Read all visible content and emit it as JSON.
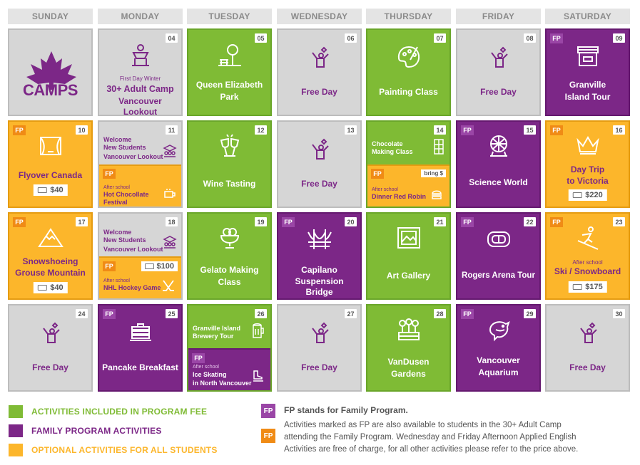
{
  "days": [
    "SUNDAY",
    "MONDAY",
    "TUESDAY",
    "WEDNESDAY",
    "THURSDAY",
    "FRIDAY",
    "SATURDAY"
  ],
  "logo": {
    "text": "CAMPS"
  },
  "fp_label": "FP",
  "free_day": "Free Day",
  "cells": {
    "d04": {
      "num": "04",
      "small": "First Day Winter",
      "line1": "30+ Adult Camp",
      "line2": "Vancouver Lookout"
    },
    "d05": {
      "num": "05",
      "line1": "Queen Elizabeth",
      "line2": "Park"
    },
    "d06": {
      "num": "06"
    },
    "d07": {
      "num": "07",
      "line1": "Painting Class"
    },
    "d08": {
      "num": "08"
    },
    "d09": {
      "num": "09",
      "line1": "Granville",
      "line2": "Island Tour"
    },
    "d10": {
      "num": "10",
      "line1": "Flyover Canada",
      "price": "$40"
    },
    "d11": {
      "num": "11",
      "top1": "Welcome",
      "top2": "New Students",
      "top3": "Vancouver Lookout",
      "after": "After school",
      "bot1": "Hot Chocollate",
      "bot2": "Festival"
    },
    "d12": {
      "num": "12",
      "line1": "Wine Tasting"
    },
    "d13": {
      "num": "13"
    },
    "d14": {
      "num": "14",
      "top1": "Chocolate",
      "top2": "Making Class",
      "bring": "bring $",
      "after": "After school",
      "bot1": "Dinner Red Robin"
    },
    "d15": {
      "num": "15",
      "line1": "Science World"
    },
    "d16": {
      "num": "16",
      "line1": "Day Trip",
      "line2": "to Victoria",
      "price": "$220"
    },
    "d17": {
      "num": "17",
      "line1": "Snowshoeing",
      "line2": "Grouse Mountain",
      "price": "$40"
    },
    "d18": {
      "num": "18",
      "top1": "Welcome",
      "top2": "New Students",
      "top3": "Vancouver Lookout",
      "price": "$100",
      "after": "After school",
      "bot1": "NHL Hockey Game"
    },
    "d19": {
      "num": "19",
      "line1": "Gelato Making",
      "line2": "Class"
    },
    "d20": {
      "num": "20",
      "line1": "Capilano",
      "line2": "Suspension Bridge"
    },
    "d21": {
      "num": "21",
      "line1": "Art Gallery"
    },
    "d22": {
      "num": "22",
      "line1": "Rogers Arena Tour"
    },
    "d23": {
      "num": "23",
      "after": "After school",
      "line1": "Ski / Snowboard",
      "price": "$175"
    },
    "d24": {
      "num": "24"
    },
    "d25": {
      "num": "25",
      "line1": "Pancake Breakfast"
    },
    "d26": {
      "num": "26",
      "top1": "Granville Island",
      "top2": "Brewery Tour",
      "after": "After school",
      "bot1": "Ice Skating",
      "bot2": "in North Vancouver"
    },
    "d27": {
      "num": "27"
    },
    "d28": {
      "num": "28",
      "line1": "VanDusen",
      "line2": "Gardens"
    },
    "d29": {
      "num": "29",
      "line1": "Vancouver",
      "line2": "Aquarium"
    },
    "d30": {
      "num": "30"
    }
  },
  "legend": {
    "green": "ACTIVITIES INCLUDED IN PROGRAM FEE",
    "purple": "FAMILY PROGRAM ACTIVITIES",
    "orange": "OPTIONAL ACTIVITIES FOR ALL STUDENTS",
    "fp_title": "FP stands for Family Program.",
    "note1": "Activities marked as FP are also available to students in the 30+ Adult Camp",
    "note2": "attending the Family Program. Wednesday and Friday Afternoon Applied English",
    "note3": "Activities are free of charge, for all other activities please refer to the price above."
  },
  "colors": {
    "green": "#7fbb35",
    "purple": "#7c2787",
    "orange": "#fcb62b",
    "gray": "#d6d6d6"
  }
}
